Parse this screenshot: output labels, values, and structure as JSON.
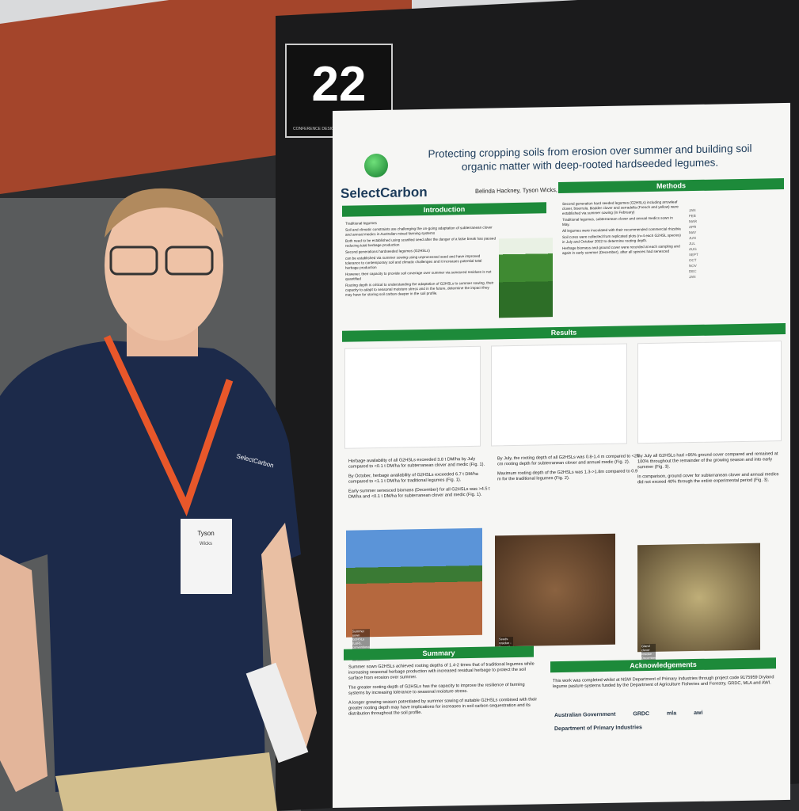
{
  "sign": {
    "number": "22",
    "caption": "CONFERENCE DESIGN"
  },
  "poster": {
    "title": "Protecting cropping soils from erosion over summer and building soil organic matter with deep-rooted hardseeded legumes.",
    "logo": "SelectCarbon",
    "authors": "Belinda Hackney, Tyson Wicks, Jessica Rigg, Susan Orgill",
    "introduction": {
      "heading": "Introduction",
      "paragraphs": [
        "Traditional legumes",
        "Soil and climatic constraints are challenging the on-going adaptation of subterranean clover and annual medics in Australian mixed farming systems",
        "Both need to be established using scarified seed after the danger of a false break has passed reducing total herbage production",
        "Second generations hardseeded legumes (G2HSLs)",
        "can be established via summer sowing using unprocessed seed and have improved tolerance to contemporary soil and climatic challenges and it increases potential total herbage production",
        "However, their capacity to provide soil coverage over summer via senesced residues is not quantified",
        "Rooting depth is critical to understanding the adaptation of G2HSLs to summer sowing, their capacity to adapt to seasonal moisture stress and in the future, determine the impact they may have for storing soil carbon deeper in the soil profile."
      ]
    },
    "methods": {
      "heading": "Methods",
      "paragraphs": [
        "Second generation hard seeded legumes (G2HSLs) including arrowleaf clover, biserrula, bladder clover and serradella (French and yellow) were established via summer sowing (in February)",
        "Traditional legumes, subterranean clover and annual medics sown in May.",
        "All legumes were inoculated with their recommended commercial rhizobia",
        "Soil cores were collected from replicated plots (n=4 each G2HSL species) in July and October 2022 to determine rooting depth.",
        "Herbage biomass and ground cover were recorded at each sampling and again in early summer (December), after all species had senesced"
      ],
      "months": [
        "JAN",
        "FEB",
        "MAR",
        "APR",
        "MAY",
        "JUN",
        "JUL",
        "AUG",
        "SEPT",
        "OCT",
        "NOV",
        "DEC",
        "JAN"
      ]
    },
    "results": {
      "heading": "Results",
      "findings": [
        "Herbage availability of all G2HSLs exceeded 3.8 t DM/ha by July compared to <0.1 t DM/ha for subterranean clover and medic (Fig. 1).",
        "By October, herbage availability of G2HSLs exceeded 6.7 t DM/ha compared to <1.1 t DM/ha for traditional legumes (Fig. 1).",
        "Early summer senesced biomass (December) for all G2HSLs was >4.5 t DM/ha and <0.1 t DM/ha for subterranean clover and medic (Fig. 1).",
        "By July, the rooting depth of all G2HSLs was 0.8-1.4 m compared to <25 cm rooting depth for subterranean clover and annual medic (Fig. 2).",
        "Maximum rooting depth of the G2HSLs was 1.3->1.8m compared to 0.9 m for the traditional legumes (Fig. 2).",
        "By July all G2HSLs had >95% ground cover compared and remained at 100% throughout the remainder of the growing season and into early summer (Fig. 3).",
        "In comparison, ground cover for subterranean clover and annual medics did not exceed 40% through the entire experimental period (Fig. 3)."
      ],
      "photo_captions": [
        "Summer sown G2HSLs (L&R), conventional sowing (middle) - July",
        "Seeds residue - December",
        "Gland clover residue - December"
      ]
    },
    "summary": {
      "heading": "Summary",
      "paragraphs": [
        "Summer sown G2HSLs achieved rooting depths of 1.4-2 times that of traditional legumes while increasing seasonal herbage production with increased residual herbage to protect the soil surface from erosion over summer.",
        "The greater rooting depth of G2HSLs has the capacity to improve the resilience of farming systems by increasing tolerance to seasonal moisture stress.",
        "A longer growing season potentiated by summer sowing of suitable G2HSLs combined with their greater rooting depth may have implications for increases in soil carbon sequestration and its distribution throughout the soil profile."
      ]
    },
    "acknowledgements": {
      "heading": "Acknowledgements",
      "text": "This work was completed whilst at NSW Department of Primary Industries through project code 9175959 Dryland legume pasture systems funded by the Department of Agriculture Fisheries and Forestry, GRDC, MLA and AWI.",
      "logos": [
        "Australian Government",
        "GRDC",
        "mla",
        "awi",
        "Department of Primary Industries"
      ]
    }
  },
  "person": {
    "badge_name": "Tyson",
    "badge_surname": "Wicks",
    "shirt_logo": "SelectCarbon"
  }
}
